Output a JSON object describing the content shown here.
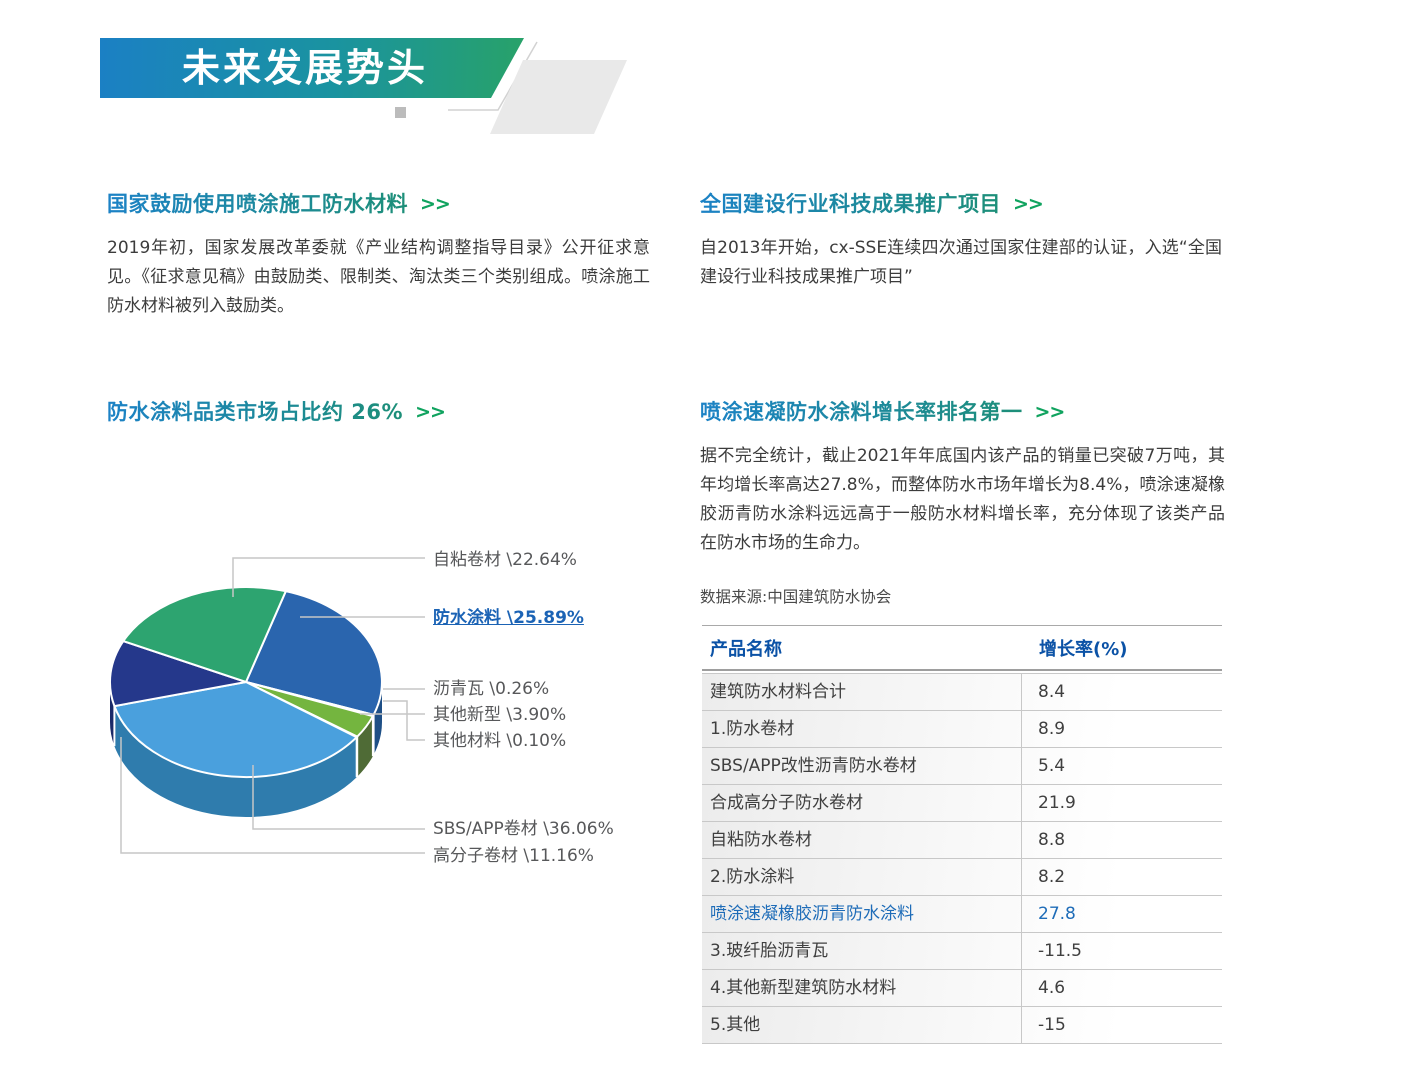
{
  "banner": {
    "title": "未来发展势头"
  },
  "sections": {
    "s1": {
      "title": "国家鼓励使用喷涂施工防水材料",
      "arrow": ">>",
      "body": "2019年初，国家发展改革委就《产业结构调整指导目录》公开征求意见。《征求意见稿》由鼓励类、限制类、淘汰类三个类别组成。喷涂施工防水材料被列入鼓励类。"
    },
    "s2": {
      "title": "全国建设行业科技成果推广项目",
      "arrow": ">>",
      "body": "自2013年开始，cx-SSE连续四次通过国家住建部的认证，入选“全国建设行业科技成果推广项目”"
    },
    "s3": {
      "title": "防水涂料品类市场占比约 26%",
      "arrow": ">>"
    },
    "s4": {
      "title": "喷涂速凝防水涂料增长率排名第一",
      "arrow": ">>",
      "body": "据不完全统计，截止2021年年底国内该产品的销量已突破7万吨，其年均增长率高达27.8%，而整体防水市场年增长为8.4%，喷涂速凝橡胶沥青防水涂料远远高于一般防水材料增长率，充分体现了该类产品在防水市场的生命力。",
      "source": "数据来源:中国建筑防水协会"
    }
  },
  "chart_data": {
    "type": "pie",
    "title": "防水涂料品类市场占比约 26%",
    "style": "3d",
    "start_angle_deg": 73,
    "direction": "clockwise",
    "slices": [
      {
        "label": "防水涂料",
        "value": 25.89,
        "display": "防水涂料 \\25.89%",
        "color": "#2a65ae",
        "side": "#1e4f86",
        "highlight": true
      },
      {
        "label": "沥青瓦",
        "value": 0.26,
        "display": "沥青瓦 \\0.26%",
        "color": "#f0a455",
        "side": "#c07f35"
      },
      {
        "label": "其他新型",
        "value": 3.9,
        "display": "其他新型 \\3.90%",
        "color": "#74b53f",
        "side": "#4f6b36"
      },
      {
        "label": "其他材料",
        "value": 0.1,
        "display": "其他材料 \\0.10%",
        "color": "#bcc5c7",
        "side": "#8e999b"
      },
      {
        "label": "SBS/APP卷材",
        "value": 36.06,
        "display": "SBS/APP卷材 \\36.06%",
        "color": "#4aa0dd",
        "side": "#2f7cad"
      },
      {
        "label": "高分子卷材",
        "value": 11.16,
        "display": "高分子卷材 \\11.16%",
        "color": "#25388b",
        "side": "#1b2a68"
      },
      {
        "label": "自粘卷材",
        "value": 22.64,
        "display": "自粘卷材 \\22.64%",
        "color": "#2da470",
        "side": "#20744f"
      }
    ],
    "legend_position": "right-callouts",
    "grid": false
  },
  "table": {
    "headers": [
      "产品名称",
      "增长率(%)"
    ],
    "rows": [
      {
        "name": "建筑防水材料合计",
        "value": "8.4"
      },
      {
        "name": "1.防水卷材",
        "value": "8.9"
      },
      {
        "name": "SBS/APP改性沥青防水卷材",
        "value": "5.4"
      },
      {
        "name": "合成高分子防水卷材",
        "value": "21.9"
      },
      {
        "name": "自粘防水卷材",
        "value": "8.8"
      },
      {
        "name": "2.防水涂料",
        "value": "8.2"
      },
      {
        "name": "喷涂速凝橡胶沥青防水涂料",
        "value": "27.8",
        "highlight": true
      },
      {
        "name": "3.玻纤胎沥青瓦",
        "value": "-11.5"
      },
      {
        "name": "4.其他新型建筑防水材料",
        "value": "4.6"
      },
      {
        "name": "5.其他",
        "value": "-15"
      }
    ]
  },
  "colors": {
    "banner_gradient_start": "#1b80c4",
    "banner_gradient_end": "#28a269",
    "heading_gradient_start": "#1c82c6",
    "heading_gradient_end": "#1d8f78",
    "arrow_green": "#10a35f",
    "table_header_blue": "#0b52a6",
    "table_highlight_blue": "#1e6cb8",
    "body_text": "#3c3c3c",
    "leader_line": "#c6c6c6"
  }
}
